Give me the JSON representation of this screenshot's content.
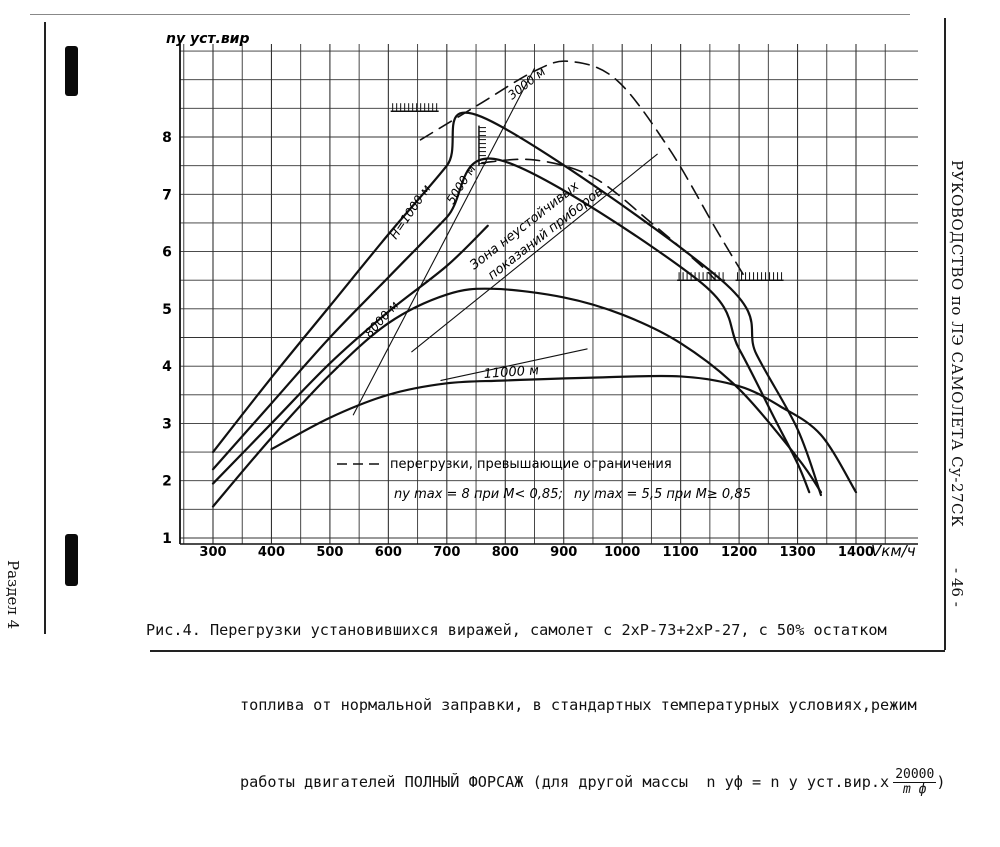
{
  "chart_data": {
    "type": "line",
    "ylabel": "ny уст.вир",
    "xlabel": "Vкм/ч",
    "xlim": [
      300,
      1400
    ],
    "ylim": [
      1,
      8.5
    ],
    "x_ticks": [
      "300",
      "400",
      "500",
      "600",
      "700",
      "800",
      "900",
      "1000",
      "1100",
      "1200",
      "1300",
      "1400"
    ],
    "y_ticks": [
      "1",
      "2",
      "3",
      "4",
      "5",
      "6",
      "7",
      "8"
    ],
    "grid": true,
    "series": [
      {
        "name": "H=1000 м",
        "style": "solid",
        "width": 2.2,
        "points": [
          [
            300,
            2.5
          ],
          [
            400,
            3.8
          ],
          [
            500,
            5.05
          ],
          [
            600,
            6.3
          ],
          [
            700,
            7.5
          ],
          [
            760,
            8.35
          ],
          [
            1170,
            5.5
          ],
          [
            1230,
            4.2
          ],
          [
            1300,
            2.9
          ],
          [
            1340,
            1.75
          ]
        ]
      },
      {
        "name": "5000 м",
        "style": "solid",
        "width": 2.2,
        "points": [
          [
            300,
            2.2
          ],
          [
            400,
            3.35
          ],
          [
            500,
            4.5
          ],
          [
            600,
            5.55
          ],
          [
            700,
            6.6
          ],
          [
            790,
            7.6
          ],
          [
            1130,
            5.5
          ],
          [
            1200,
            4.3
          ],
          [
            1260,
            3.1
          ],
          [
            1300,
            2.3
          ],
          [
            1320,
            1.8
          ]
        ]
      },
      {
        "name": "5000 м (2)",
        "style": "solid",
        "width": 2.2,
        "points": [
          [
            300,
            1.95
          ],
          [
            400,
            3.0
          ],
          [
            500,
            4.05
          ],
          [
            600,
            4.95
          ],
          [
            700,
            5.75
          ],
          [
            770,
            6.45
          ]
        ]
      },
      {
        "name": "8000 м",
        "style": "solid",
        "width": 2.2,
        "points": [
          [
            300,
            1.55
          ],
          [
            400,
            2.75
          ],
          [
            500,
            3.85
          ],
          [
            600,
            4.75
          ],
          [
            700,
            5.25
          ],
          [
            780,
            5.35
          ],
          [
            900,
            5.2
          ],
          [
            1000,
            4.9
          ],
          [
            1100,
            4.4
          ],
          [
            1200,
            3.6
          ],
          [
            1300,
            2.4
          ],
          [
            1340,
            1.8
          ]
        ]
      },
      {
        "name": "11000 м",
        "style": "solid",
        "width": 2.2,
        "points": [
          [
            400,
            2.55
          ],
          [
            500,
            3.1
          ],
          [
            600,
            3.5
          ],
          [
            700,
            3.7
          ],
          [
            800,
            3.75
          ],
          [
            950,
            3.8
          ],
          [
            1100,
            3.82
          ],
          [
            1200,
            3.65
          ],
          [
            1270,
            3.3
          ],
          [
            1340,
            2.8
          ],
          [
            1400,
            1.8
          ]
        ]
      },
      {
        "name": "перегрузки, превышающие ограничения",
        "style": "dashed",
        "width": 1.6,
        "points": [
          [
            655,
            7.95
          ],
          [
            760,
            8.6
          ],
          [
            850,
            9.15
          ],
          [
            910,
            9.32
          ],
          [
            990,
            9.0
          ],
          [
            1080,
            7.8
          ],
          [
            1160,
            6.4
          ],
          [
            1210,
            5.55
          ]
        ]
      },
      {
        "name": "перегрузки, превышающие ограничения (2)",
        "style": "dashed",
        "width": 1.6,
        "points": [
          [
            760,
            7.55
          ],
          [
            850,
            7.6
          ],
          [
            950,
            7.3
          ],
          [
            1050,
            6.5
          ],
          [
            1130,
            5.8
          ],
          [
            1160,
            5.5
          ]
        ]
      },
      {
        "name": "Зона неустойчивых показаний приборов",
        "style": "thin",
        "width": 1.1,
        "points": [
          [
            540,
            3.15
          ],
          [
            850,
            9.2
          ]
        ]
      },
      {
        "name": "Зона неустойчивых показаний приборов (2)",
        "style": "thin",
        "width": 1.1,
        "points": [
          [
            640,
            4.25
          ],
          [
            1060,
            7.7
          ]
        ]
      },
      {
        "name": "Зона неустойчивых показаний приборов (3)",
        "style": "thin",
        "width": 1.1,
        "points": [
          [
            690,
            3.75
          ],
          [
            940,
            4.3
          ]
        ]
      }
    ],
    "limit_markers": [
      [
        645,
        8.45
      ],
      [
        755,
        7.85
      ],
      [
        1135,
        5.5
      ],
      [
        1235,
        5.5
      ]
    ],
    "annotations": {
      "h1000": "H=1000 м",
      "h5000": "5000 м",
      "h3000": "3000 м",
      "h8000": "8000 м",
      "h11000": "11000 м",
      "zone": "Зона неустойчивых",
      "zone2": "показаний приборов",
      "legend_dashed": "перегрузки, превышающие ограничения",
      "limits_a": "ny max = 8 при M< 0,85;",
      "limits_b": "ny max = 5,5 при M≥ 0,85"
    }
  },
  "caption": {
    "line1": "Рис.4. Перегрузки установившихся виражей, самолет с 2хР-73+2хР-27, с 50% остатком",
    "line2": "топлива от нормальной заправки, в стандартных температурных условиях,режим",
    "line3": "работы двигателей ПОЛНЫЙ ФОРСАЖ (для другой массы  n уф = n у уст.вир.х",
    "frac_num": "20000",
    "frac_den": "m ф"
  },
  "side": {
    "right_title": "РУКОВОДСТВО по ЛЭ САМОЛЕТА Су-27СК",
    "page_number": "- 46 -",
    "section": "Раздел 4"
  }
}
